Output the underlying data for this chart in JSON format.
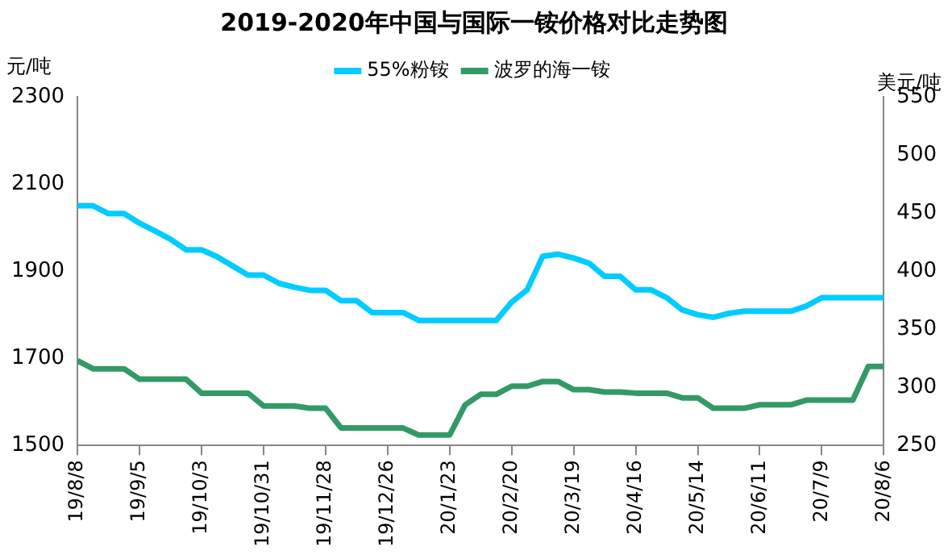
{
  "chart_data": {
    "type": "line",
    "title": "2019-2020年中国与国际一铵价格对比走势图",
    "ylabel": "元/吨",
    "y2label": "美元/吨",
    "x": [
      "2019-08-08",
      "2019-08-15",
      "2019-08-22",
      "2019-08-29",
      "2019-09-05",
      "2019-09-12",
      "2019-09-19",
      "2019-09-26",
      "2019-10-03",
      "2019-10-10",
      "2019-10-17",
      "2019-10-24",
      "2019-10-31",
      "2019-11-07",
      "2019-11-14",
      "2019-11-21",
      "2019-11-28",
      "2019-12-05",
      "2019-12-12",
      "2019-12-19",
      "2019-12-26",
      "2020-01-02",
      "2020-01-09",
      "2020-01-16",
      "2020-01-23",
      "2020-01-30",
      "2020-02-06",
      "2020-02-13",
      "2020-02-20",
      "2020-02-27",
      "2020-03-05",
      "2020-03-12",
      "2020-03-19",
      "2020-03-26",
      "2020-04-02",
      "2020-04-09",
      "2020-04-16",
      "2020-04-23",
      "2020-04-30",
      "2020-05-07",
      "2020-05-14",
      "2020-05-21",
      "2020-05-28",
      "2020-06-04",
      "2020-06-11",
      "2020-06-18",
      "2020-06-25",
      "2020-07-02",
      "2020-07-09",
      "2020-07-16",
      "2020-07-23",
      "2020-07-30",
      "2020-08-06"
    ],
    "series": [
      {
        "name": "55%粉铵",
        "color": "#00ccff",
        "values": [
          2050,
          2050,
          2032,
          2032,
          2010,
          1992,
          1973,
          1949,
          1949,
          1933,
          1912,
          1891,
          1891,
          1872,
          1863,
          1856,
          1856,
          1832,
          1832,
          1805,
          1805,
          1805,
          1787,
          1787,
          1787,
          1787,
          1787,
          1787,
          1829,
          1857,
          1934,
          1939,
          1930,
          1918,
          1888,
          1888,
          1857,
          1857,
          1839,
          1811,
          1800,
          1794,
          1803,
          1808,
          1808,
          1808,
          1808,
          1820,
          1839,
          1839,
          1839,
          1839,
          1839
        ]
      },
      {
        "name": "波罗的海一铵",
        "color": "#339966",
        "axis": "y2",
        "values": [
          323,
          316,
          316,
          316,
          307,
          307,
          307,
          307,
          295,
          295,
          295,
          295,
          284,
          284,
          284,
          282,
          282,
          265,
          265,
          265,
          265,
          265,
          259,
          259,
          259,
          285,
          294,
          294,
          301,
          301,
          305,
          305,
          298,
          298,
          296,
          296,
          295,
          295,
          295,
          291,
          291,
          282,
          282,
          282,
          285,
          285,
          285,
          289,
          289,
          289,
          289,
          318,
          318
        ]
      }
    ],
    "xlim": [
      "2019-08-08",
      "2020-08-06"
    ],
    "xticks": [
      {
        "value": "2019-08-08",
        "label": "19/8/8"
      },
      {
        "value": "2019-09-05",
        "label": "19/9/5"
      },
      {
        "value": "2019-10-03",
        "label": "19/10/3"
      },
      {
        "value": "2019-10-31",
        "label": "19/10/31"
      },
      {
        "value": "2019-11-28",
        "label": "19/11/28"
      },
      {
        "value": "2019-12-26",
        "label": "19/12/26"
      },
      {
        "value": "2020-01-23",
        "label": "20/1/23"
      },
      {
        "value": "2020-02-20",
        "label": "20/2/20"
      },
      {
        "value": "2020-03-19",
        "label": "20/3/19"
      },
      {
        "value": "2020-04-16",
        "label": "20/4/16"
      },
      {
        "value": "2020-05-14",
        "label": "20/5/14"
      },
      {
        "value": "2020-06-11",
        "label": "20/6/11"
      },
      {
        "value": "2020-07-09",
        "label": "20/7/9"
      },
      {
        "value": "2020-08-06",
        "label": "20/8/6"
      }
    ],
    "ylim": [
      1500,
      2300
    ],
    "yticks": [
      1500,
      1700,
      1900,
      2100,
      2300
    ],
    "y2lim": [
      250,
      550
    ],
    "y2ticks": [
      250,
      300,
      350,
      400,
      450,
      500,
      550
    ],
    "grid": false,
    "legend": "top",
    "marker": "none",
    "line_style": "solid"
  }
}
